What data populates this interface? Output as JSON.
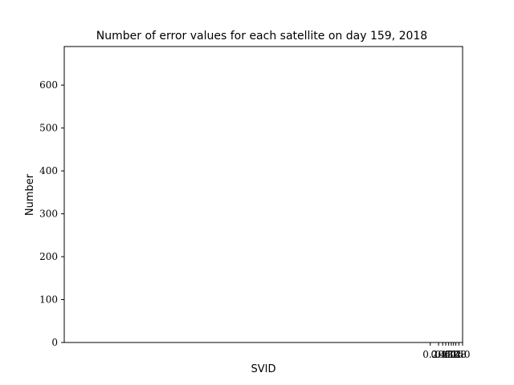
{
  "chart_data": {
    "type": "bar",
    "title": "Number of error values for each satellite on day 159, 2018",
    "xlabel": "SVID",
    "ylabel": "Number",
    "ylim": [
      0,
      690
    ],
    "yticks": [
      "0",
      "100",
      "200",
      "300",
      "400",
      "500",
      "600"
    ],
    "ytick_values": [
      0,
      100,
      200,
      300,
      400,
      500,
      600
    ],
    "xlim": [
      -0.86,
      0.2
    ],
    "xticks": [
      "0.2",
      "0.4",
      "0.6",
      "0.8",
      "1.0",
      "1.2",
      "1.4",
      "1.6",
      "1.8",
      "2.0"
    ],
    "xtick_values": [
      0.114,
      0.136,
      0.147,
      0.155,
      0.163,
      0.17,
      0.176,
      0.182,
      0.19,
      0.2
    ],
    "categories": [],
    "values": [],
    "grid": false
  }
}
